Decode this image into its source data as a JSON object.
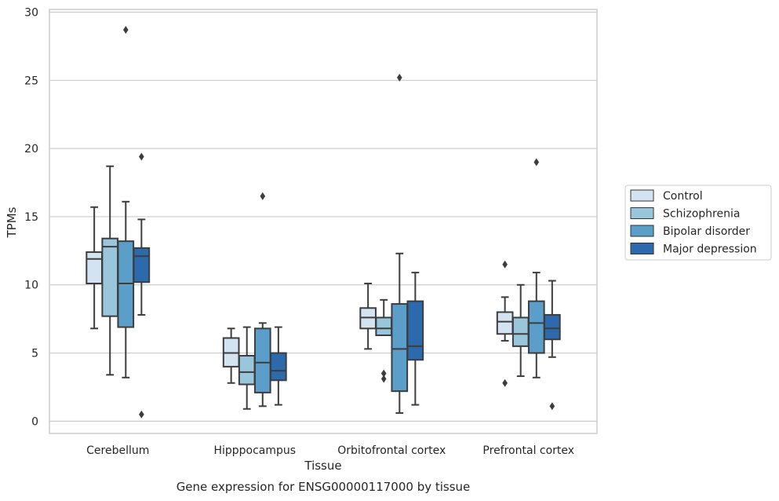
{
  "chart_data": {
    "type": "boxplot",
    "title": "",
    "caption": "Gene expression for ENSG00000117000 by tissue",
    "xlabel": "Tissue",
    "ylabel": "TPMs",
    "ylim": [
      -0.9,
      30.2
    ],
    "yticks": [
      0,
      5,
      10,
      15,
      20,
      25,
      30
    ],
    "grid": "horizontal",
    "legend_position": "right",
    "categories": [
      "Cerebellum",
      "Hipppocampus",
      "Orbitofrontal cortex",
      "Prefrontal cortex"
    ],
    "series": [
      {
        "name": "Control",
        "color": "#d4e3f2",
        "boxes": [
          {
            "whisker_low": 6.8,
            "q1": 10.1,
            "median": 11.9,
            "q3": 12.4,
            "whisker_high": 15.7,
            "outliers": []
          },
          {
            "whisker_low": 2.8,
            "q1": 4.0,
            "median": 5.0,
            "q3": 6.1,
            "whisker_high": 6.8,
            "outliers": []
          },
          {
            "whisker_low": 5.3,
            "q1": 6.8,
            "median": 7.6,
            "q3": 8.3,
            "whisker_high": 10.1,
            "outliers": []
          },
          {
            "whisker_low": 5.9,
            "q1": 6.4,
            "median": 7.3,
            "q3": 8.0,
            "whisker_high": 9.1,
            "outliers": [
              11.5,
              2.8
            ]
          }
        ]
      },
      {
        "name": "Schizophrenia",
        "color": "#9ac6dc",
        "boxes": [
          {
            "whisker_low": 3.4,
            "q1": 7.7,
            "median": 12.8,
            "q3": 13.4,
            "whisker_high": 18.7,
            "outliers": []
          },
          {
            "whisker_low": 0.9,
            "q1": 2.7,
            "median": 3.6,
            "q3": 4.8,
            "whisker_high": 6.9,
            "outliers": []
          },
          {
            "whisker_low": 6.3,
            "q1": 6.3,
            "median": 6.8,
            "q3": 7.6,
            "whisker_high": 8.9,
            "outliers": [
              3.5,
              3.1
            ]
          },
          {
            "whisker_low": 3.3,
            "q1": 5.5,
            "median": 6.4,
            "q3": 7.6,
            "whisker_high": 10.0,
            "outliers": []
          }
        ]
      },
      {
        "name": "Bipolar disorder",
        "color": "#5a9ec9",
        "boxes": [
          {
            "whisker_low": 3.2,
            "q1": 6.9,
            "median": 10.1,
            "q3": 13.2,
            "whisker_high": 16.1,
            "outliers": [
              28.7
            ]
          },
          {
            "whisker_low": 1.1,
            "q1": 2.1,
            "median": 4.3,
            "q3": 6.8,
            "whisker_high": 7.2,
            "outliers": [
              16.5
            ]
          },
          {
            "whisker_low": 0.6,
            "q1": 2.2,
            "median": 5.3,
            "q3": 8.6,
            "whisker_high": 12.3,
            "outliers": [
              25.2
            ]
          },
          {
            "whisker_low": 3.2,
            "q1": 5.0,
            "median": 7.2,
            "q3": 8.8,
            "whisker_high": 10.9,
            "outliers": [
              19.0
            ]
          }
        ]
      },
      {
        "name": "Major depression",
        "color": "#2c6aad",
        "boxes": [
          {
            "whisker_low": 7.8,
            "q1": 10.2,
            "median": 12.1,
            "q3": 12.7,
            "whisker_high": 14.8,
            "outliers": [
              19.4,
              0.5
            ]
          },
          {
            "whisker_low": 1.2,
            "q1": 3.0,
            "median": 3.7,
            "q3": 5.0,
            "whisker_high": 6.9,
            "outliers": []
          },
          {
            "whisker_low": 1.2,
            "q1": 4.5,
            "median": 5.5,
            "q3": 8.8,
            "whisker_high": 10.9,
            "outliers": []
          },
          {
            "whisker_low": 4.7,
            "q1": 6.0,
            "median": 6.8,
            "q3": 7.8,
            "whisker_high": 10.3,
            "outliers": [
              1.1
            ]
          }
        ]
      }
    ]
  }
}
